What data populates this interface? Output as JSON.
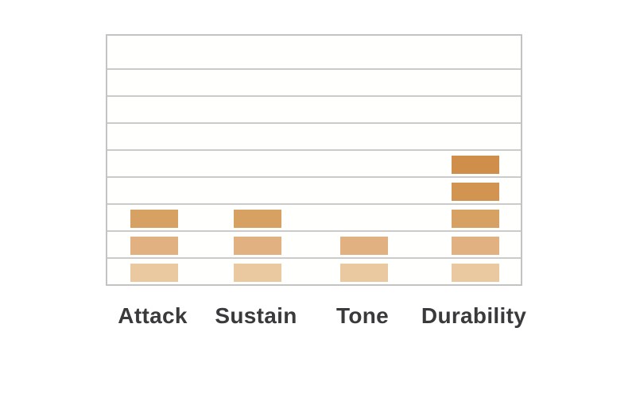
{
  "chart_data": {
    "type": "bar",
    "subtype": "stacked-block-rating",
    "title": "",
    "xlabel": "",
    "ylabel": "",
    "categories": [
      "Attack",
      "Sustain",
      "Tone",
      "Durability"
    ],
    "values": [
      3,
      3,
      2,
      5
    ],
    "ylim": [
      0,
      9
    ],
    "grid": true,
    "legend": false,
    "axis_tick_labels": [],
    "block_colors_by_level": [
      "#EBC9A0",
      "#E2B181",
      "#D8A164",
      "#D29551",
      "#CF8E49"
    ],
    "gridline_color": "#CBCBCB",
    "plot_border_color": "#C3C3C3",
    "category_label_color": "#3A3A3C",
    "background_color": "#FFFFFF"
  }
}
